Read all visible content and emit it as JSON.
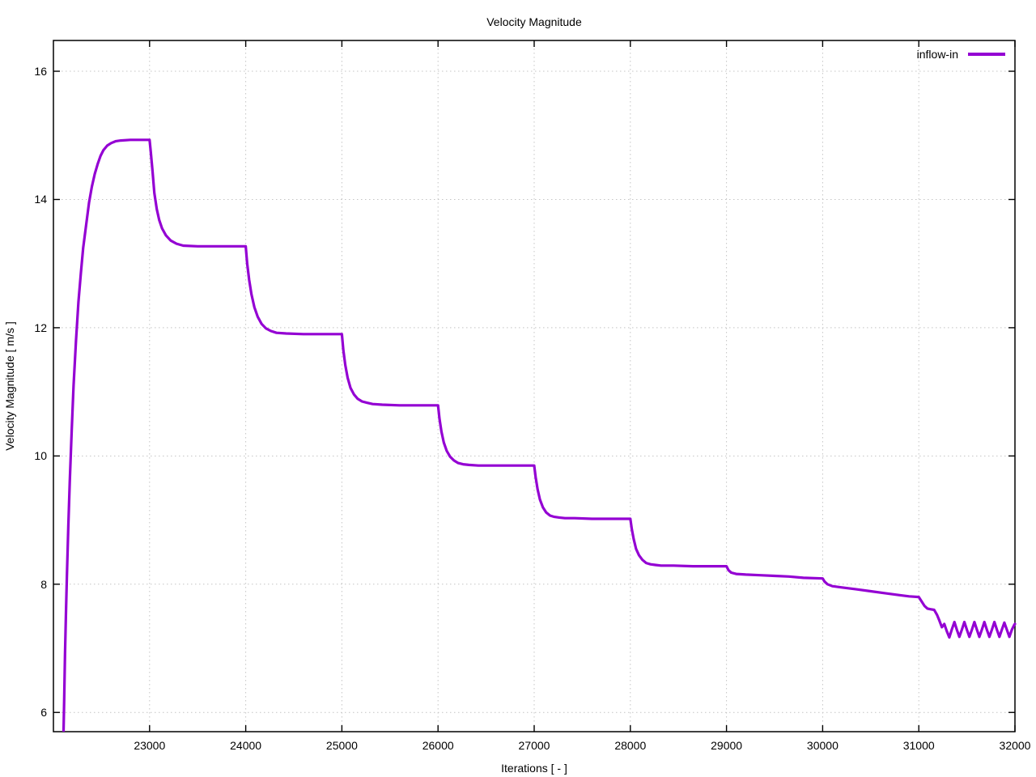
{
  "chart_data": {
    "type": "line",
    "title": "Velocity Magnitude",
    "xlabel": "Iterations [ - ]",
    "ylabel": "Velocity Magnitude [ m/s ]",
    "xlim": [
      22000,
      32000
    ],
    "ylim": [
      5.7,
      16.48
    ],
    "x_ticks": [
      23000,
      24000,
      25000,
      26000,
      27000,
      28000,
      29000,
      30000,
      31000,
      32000
    ],
    "y_ticks": [
      6,
      8,
      10,
      12,
      14,
      16
    ],
    "grid": true,
    "legend_position": "top-right-inside",
    "colors": {
      "background": "#ffffff",
      "axis": "#000000",
      "grid": "#c4c4c4",
      "text": "#000000"
    },
    "series": [
      {
        "name": "inflow-in",
        "color": "#9400d3",
        "points": [
          [
            22105,
            5.7
          ],
          [
            22112,
            6.2
          ],
          [
            22120,
            6.9
          ],
          [
            22130,
            7.5
          ],
          [
            22140,
            8.1
          ],
          [
            22155,
            8.9
          ],
          [
            22170,
            9.6
          ],
          [
            22190,
            10.4
          ],
          [
            22210,
            11.1
          ],
          [
            22235,
            11.8
          ],
          [
            22260,
            12.4
          ],
          [
            22285,
            12.85
          ],
          [
            22310,
            13.25
          ],
          [
            22340,
            13.6
          ],
          [
            22370,
            13.95
          ],
          [
            22400,
            14.2
          ],
          [
            22430,
            14.4
          ],
          [
            22460,
            14.55
          ],
          [
            22490,
            14.68
          ],
          [
            22520,
            14.77
          ],
          [
            22560,
            14.84
          ],
          [
            22600,
            14.88
          ],
          [
            22650,
            14.91
          ],
          [
            22700,
            14.92
          ],
          [
            22800,
            14.93
          ],
          [
            22900,
            14.93
          ],
          [
            23000,
            14.93
          ],
          [
            23010,
            14.78
          ],
          [
            23030,
            14.45
          ],
          [
            23050,
            14.1
          ],
          [
            23075,
            13.85
          ],
          [
            23100,
            13.68
          ],
          [
            23130,
            13.55
          ],
          [
            23170,
            13.44
          ],
          [
            23220,
            13.36
          ],
          [
            23280,
            13.31
          ],
          [
            23350,
            13.28
          ],
          [
            23500,
            13.27
          ],
          [
            23750,
            13.27
          ],
          [
            24000,
            13.27
          ],
          [
            24015,
            13.0
          ],
          [
            24035,
            12.75
          ],
          [
            24060,
            12.52
          ],
          [
            24090,
            12.32
          ],
          [
            24125,
            12.17
          ],
          [
            24165,
            12.06
          ],
          [
            24210,
            11.99
          ],
          [
            24260,
            11.95
          ],
          [
            24320,
            11.92
          ],
          [
            24420,
            11.91
          ],
          [
            24600,
            11.9
          ],
          [
            24800,
            11.9
          ],
          [
            25000,
            11.9
          ],
          [
            25015,
            11.65
          ],
          [
            25035,
            11.42
          ],
          [
            25060,
            11.22
          ],
          [
            25090,
            11.06
          ],
          [
            25125,
            10.96
          ],
          [
            25165,
            10.89
          ],
          [
            25210,
            10.85
          ],
          [
            25260,
            10.83
          ],
          [
            25320,
            10.81
          ],
          [
            25420,
            10.8
          ],
          [
            25600,
            10.79
          ],
          [
            25800,
            10.79
          ],
          [
            26000,
            10.79
          ],
          [
            26015,
            10.58
          ],
          [
            26035,
            10.38
          ],
          [
            26060,
            10.21
          ],
          [
            26090,
            10.08
          ],
          [
            26125,
            9.99
          ],
          [
            26165,
            9.93
          ],
          [
            26210,
            9.89
          ],
          [
            26260,
            9.87
          ],
          [
            26320,
            9.86
          ],
          [
            26420,
            9.85
          ],
          [
            26600,
            9.85
          ],
          [
            26800,
            9.85
          ],
          [
            27000,
            9.85
          ],
          [
            27015,
            9.67
          ],
          [
            27035,
            9.48
          ],
          [
            27060,
            9.32
          ],
          [
            27090,
            9.2
          ],
          [
            27125,
            9.12
          ],
          [
            27165,
            9.07
          ],
          [
            27210,
            9.05
          ],
          [
            27260,
            9.04
          ],
          [
            27320,
            9.03
          ],
          [
            27420,
            9.03
          ],
          [
            27600,
            9.02
          ],
          [
            27800,
            9.02
          ],
          [
            28000,
            9.02
          ],
          [
            28015,
            8.86
          ],
          [
            28035,
            8.7
          ],
          [
            28060,
            8.55
          ],
          [
            28090,
            8.45
          ],
          [
            28125,
            8.38
          ],
          [
            28165,
            8.33
          ],
          [
            28210,
            8.31
          ],
          [
            28260,
            8.3
          ],
          [
            28320,
            8.29
          ],
          [
            28450,
            8.29
          ],
          [
            28650,
            8.28
          ],
          [
            28850,
            8.28
          ],
          [
            29000,
            8.28
          ],
          [
            29020,
            8.22
          ],
          [
            29050,
            8.18
          ],
          [
            29100,
            8.16
          ],
          [
            29200,
            8.15
          ],
          [
            29350,
            8.14
          ],
          [
            29500,
            8.13
          ],
          [
            29650,
            8.12
          ],
          [
            29800,
            8.1
          ],
          [
            30000,
            8.09
          ],
          [
            30020,
            8.04
          ],
          [
            30050,
            8.0
          ],
          [
            30100,
            7.97
          ],
          [
            30200,
            7.95
          ],
          [
            30350,
            7.92
          ],
          [
            30500,
            7.89
          ],
          [
            30650,
            7.86
          ],
          [
            30800,
            7.83
          ],
          [
            30900,
            7.81
          ],
          [
            31000,
            7.8
          ],
          [
            31030,
            7.73
          ],
          [
            31060,
            7.66
          ],
          [
            31090,
            7.62
          ],
          [
            31120,
            7.61
          ],
          [
            31160,
            7.6
          ],
          [
            31190,
            7.52
          ],
          [
            31215,
            7.43
          ],
          [
            31240,
            7.33
          ],
          [
            31265,
            7.38
          ],
          [
            31290,
            7.27
          ],
          [
            31317,
            7.17
          ],
          [
            31343,
            7.29
          ],
          [
            31370,
            7.41
          ],
          [
            31396,
            7.29
          ],
          [
            31422,
            7.18
          ],
          [
            31448,
            7.29
          ],
          [
            31474,
            7.41
          ],
          [
            31500,
            7.29
          ],
          [
            31526,
            7.18
          ],
          [
            31552,
            7.29
          ],
          [
            31578,
            7.41
          ],
          [
            31604,
            7.29
          ],
          [
            31630,
            7.18
          ],
          [
            31656,
            7.29
          ],
          [
            31682,
            7.41
          ],
          [
            31708,
            7.29
          ],
          [
            31734,
            7.18
          ],
          [
            31760,
            7.29
          ],
          [
            31786,
            7.41
          ],
          [
            31812,
            7.29
          ],
          [
            31838,
            7.18
          ],
          [
            31864,
            7.29
          ],
          [
            31890,
            7.4
          ],
          [
            31916,
            7.29
          ],
          [
            31942,
            7.18
          ],
          [
            31968,
            7.29
          ],
          [
            31994,
            7.37
          ],
          [
            32000,
            7.38
          ]
        ]
      }
    ]
  }
}
